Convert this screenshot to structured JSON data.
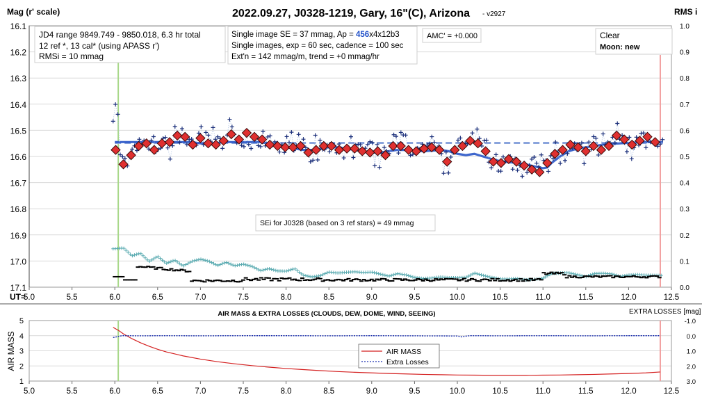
{
  "chart_data": [
    {
      "type": "scatter",
      "title": "2022.09.27, J0328-1219, Gary, 16\"(C), Arizona",
      "version": "- v2927",
      "ylabel_left": "Mag (r' scale)",
      "ylabel_right": "RMS i",
      "xlabel": "UT=",
      "x_ticks": [
        "5.0",
        "5.5",
        "6.0",
        "6.5",
        "7.0",
        "7.5",
        "8.0",
        "8.5",
        "9.0",
        "9.5",
        "10.0",
        "10.5",
        "11.0",
        "11.5",
        "12.0",
        "12.5"
      ],
      "y_ticks_left": [
        "16.1",
        "16.2",
        "16.3",
        "16.4",
        "16.5",
        "16.6",
        "16.7",
        "16.8",
        "16.9",
        "17.0",
        "17.1"
      ],
      "y_ticks_right": [
        "1.0",
        "0.9",
        "0.8",
        "0.7",
        "0.6",
        "0.5",
        "0.4",
        "0.3",
        "0.2",
        "0.1",
        "0.0"
      ],
      "xlim": [
        5.0,
        12.5
      ],
      "ylim": [
        16.1,
        17.1
      ],
      "y2lim": [
        0.0,
        1.0
      ],
      "ingress_ut": 6.04,
      "egress_ut": 12.37,
      "reference_mag": 16.55,
      "info_box_1": [
        "JD4 range 9849.749 - 9850.018, 6.3 hr total",
        "12 ref *, 13 cal*  (using APASS r')",
        "RMSi = 10 mmag"
      ],
      "info_box_2": {
        "line1_prefix": "Single image SE = 37 mmag, Ap = ",
        "line1_ap": "456",
        "line1_suffix": "x4x12b3",
        "line2": "Single images, exp = 60 sec, cadence = 100 sec",
        "line3": "Ext'n = 142 mmag/m, trend = +0 mmag/hr"
      },
      "amc_box": "AMC' = +0.000",
      "sky_box": {
        "line1": "Clear",
        "line2": "Moon: new"
      },
      "sei_box": "SEi for J0328 (based on 3 ref stars) = 49 mmag",
      "series": [
        {
          "label": "binned mag",
          "x": [
            6.01,
            6.1,
            6.19,
            6.28,
            6.37,
            6.46,
            6.55,
            6.64,
            6.73,
            6.82,
            6.91,
            7.0,
            7.09,
            7.18,
            7.27,
            7.36,
            7.45,
            7.54,
            7.63,
            7.72,
            7.81,
            7.9,
            7.99,
            8.08,
            8.17,
            8.26,
            8.35,
            8.44,
            8.53,
            8.62,
            8.71,
            8.8,
            8.89,
            8.98,
            9.07,
            9.16,
            9.25,
            9.34,
            9.43,
            9.52,
            9.61,
            9.7,
            9.79,
            9.88,
            9.97,
            10.06,
            10.15,
            10.24,
            10.33,
            10.42,
            10.51,
            10.6,
            10.69,
            10.78,
            10.87,
            10.96,
            11.05,
            11.14,
            11.23,
            11.32,
            11.41,
            11.5,
            11.59,
            11.68,
            11.77,
            11.86,
            11.95,
            12.04,
            12.13,
            12.22,
            12.31
          ],
          "y": [
            16.575,
            16.63,
            16.595,
            16.56,
            16.55,
            16.575,
            16.55,
            16.545,
            16.52,
            16.525,
            16.555,
            16.53,
            16.55,
            16.555,
            16.54,
            16.515,
            16.535,
            16.51,
            16.525,
            16.535,
            16.555,
            16.56,
            16.565,
            16.565,
            16.56,
            16.585,
            16.575,
            16.56,
            16.56,
            16.575,
            16.57,
            16.57,
            16.58,
            16.585,
            16.58,
            16.595,
            16.56,
            16.56,
            16.575,
            16.58,
            16.57,
            16.565,
            16.575,
            16.62,
            16.575,
            16.56,
            16.54,
            16.55,
            16.58,
            16.62,
            16.625,
            16.61,
            16.62,
            16.635,
            16.65,
            16.66,
            16.625,
            16.59,
            16.575,
            16.555,
            16.565,
            16.58,
            16.56,
            16.575,
            16.56,
            16.52,
            16.535,
            16.555,
            16.54,
            16.525,
            16.545
          ],
          "color": "#e03030"
        },
        {
          "label": "model",
          "x": [
            6.0,
            6.05,
            6.1,
            6.15,
            6.2,
            6.25,
            6.3,
            6.4,
            6.5,
            6.6,
            6.7,
            6.8,
            6.9,
            7.0,
            7.1,
            7.2,
            7.3,
            7.4,
            7.5,
            7.6,
            7.7,
            7.8,
            7.9,
            8.0,
            8.1,
            8.2,
            8.3,
            8.4,
            8.5,
            8.6,
            8.7,
            8.8,
            8.9,
            9.0,
            9.1,
            9.2,
            9.3,
            9.4,
            9.5,
            9.6,
            9.7,
            9.8,
            9.9,
            10.0,
            10.1,
            10.2,
            10.3,
            10.4,
            10.5,
            10.6,
            10.7,
            10.8,
            10.9,
            11.0,
            11.05,
            11.1,
            11.2,
            11.3,
            11.4,
            11.5,
            11.6,
            11.7,
            11.8,
            11.9,
            12.0,
            12.1,
            12.2,
            12.3,
            12.4
          ],
          "y": [
            16.545,
            16.545,
            16.545,
            16.545,
            16.545,
            16.545,
            16.545,
            16.545,
            16.545,
            16.545,
            16.545,
            16.545,
            16.545,
            16.55,
            16.55,
            16.548,
            16.545,
            16.545,
            16.545,
            16.545,
            16.545,
            16.55,
            16.56,
            16.565,
            16.57,
            16.575,
            16.575,
            16.57,
            16.565,
            16.565,
            16.57,
            16.575,
            16.58,
            16.585,
            16.585,
            16.58,
            16.575,
            16.575,
            16.578,
            16.58,
            16.578,
            16.575,
            16.58,
            16.59,
            16.595,
            16.59,
            16.6,
            16.61,
            16.618,
            16.622,
            16.625,
            16.63,
            16.638,
            16.645,
            16.642,
            16.625,
            16.6,
            16.58,
            16.57,
            16.565,
            16.56,
            16.555,
            16.552,
            16.55,
            16.548,
            16.546,
            16.545,
            16.545,
            16.545
          ],
          "color": "#2a56c8"
        },
        {
          "label": "reference level",
          "x": [
            6.0,
            12.4
          ],
          "y": [
            16.548,
            16.548
          ],
          "color": "#8aa4dc"
        },
        {
          "label": "RMS",
          "x": [
            6.0,
            6.1,
            6.2,
            6.3,
            6.4,
            6.5,
            6.6,
            6.7,
            6.8,
            6.9,
            7.0,
            7.1,
            7.2,
            7.3,
            7.4,
            7.5,
            7.6,
            7.7,
            7.8,
            7.9,
            8.0,
            8.1,
            8.2,
            8.3,
            8.4,
            8.5,
            8.6,
            8.7,
            8.8,
            8.9,
            9.0,
            9.1,
            9.2,
            9.3,
            9.4,
            9.5,
            9.6,
            9.7,
            9.8,
            9.9,
            10.0,
            10.1,
            10.2,
            10.3,
            10.4,
            10.5,
            10.6,
            10.7,
            10.8,
            10.9,
            11.0,
            11.1,
            11.2,
            11.3,
            11.4,
            11.5,
            11.6,
            11.7,
            11.8,
            11.9,
            12.0,
            12.1,
            12.2,
            12.3
          ],
          "y": [
            0.147,
            0.15,
            0.12,
            0.13,
            0.098,
            0.118,
            0.091,
            0.103,
            0.081,
            0.099,
            0.107,
            0.099,
            0.083,
            0.095,
            0.082,
            0.088,
            0.08,
            0.063,
            0.071,
            0.062,
            0.061,
            0.071,
            0.046,
            0.039,
            0.044,
            0.058,
            0.054,
            0.057,
            0.059,
            0.056,
            0.058,
            0.05,
            0.042,
            0.052,
            0.047,
            0.037,
            0.033,
            0.035,
            0.039,
            0.036,
            0.036,
            0.037,
            0.054,
            0.045,
            0.037,
            0.032,
            0.032,
            0.033,
            0.028,
            0.03,
            0.034,
            0.052,
            0.054,
            0.055,
            0.048,
            0.04,
            0.052,
            0.053,
            0.051,
            0.041,
            0.046,
            0.048,
            0.046,
            0.045
          ],
          "color": "#58aab0"
        }
      ]
    },
    {
      "type": "line",
      "title": "AIR MASS & EXTRA LOSSES (CLOUDS, DEW, DOME, WIND, SEEING)",
      "ylabel_left": "AIR MASS",
      "ylabel_right": "EXTRA LOSSES [mag]",
      "x_ticks": [
        "5.0",
        "5.5",
        "6.0",
        "6.5",
        "7.0",
        "7.5",
        "8.0",
        "8.5",
        "9.0",
        "9.5",
        "10.0",
        "10.5",
        "11.0",
        "11.5",
        "12.0",
        "12.5"
      ],
      "y_ticks_left": [
        "5",
        "4",
        "3",
        "2",
        "1"
      ],
      "y_ticks_right": [
        "-1.0",
        "0.0",
        "1.0",
        "2.0",
        "3.0"
      ],
      "xlim": [
        5.0,
        12.5
      ],
      "ylim": [
        1,
        5
      ],
      "y2lim": [
        -1.0,
        3.0
      ],
      "legend": [
        "AIR MASS",
        "Extra Losses"
      ],
      "series": [
        {
          "name": "AIR MASS",
          "x": [
            5.98,
            6.05,
            6.1,
            6.2,
            6.3,
            6.4,
            6.5,
            6.6,
            6.8,
            7.0,
            7.2,
            7.4,
            7.6,
            7.8,
            8.0,
            8.2,
            8.4,
            8.6,
            8.8,
            9.0,
            9.2,
            9.4,
            9.6,
            9.8,
            10.0,
            10.2,
            10.4,
            10.6,
            10.8,
            11.0,
            11.2,
            11.4,
            11.6,
            11.8,
            12.0,
            12.2,
            12.37
          ],
          "y": [
            4.55,
            4.32,
            4.12,
            3.8,
            3.53,
            3.3,
            3.1,
            2.93,
            2.66,
            2.45,
            2.28,
            2.14,
            2.02,
            1.92,
            1.83,
            1.76,
            1.69,
            1.63,
            1.58,
            1.54,
            1.5,
            1.47,
            1.44,
            1.42,
            1.4,
            1.39,
            1.38,
            1.38,
            1.38,
            1.39,
            1.4,
            1.42,
            1.44,
            1.47,
            1.5,
            1.54,
            1.6
          ],
          "color": "#d42020"
        },
        {
          "name": "Extra Losses",
          "x": [
            5.98,
            6.02,
            6.06,
            6.1,
            6.3,
            6.6,
            7.0,
            7.5,
            8.0,
            8.5,
            9.0,
            9.5,
            10.0,
            10.05,
            10.1,
            10.15,
            10.5,
            11.0,
            11.5,
            12.0,
            12.37
          ],
          "y": [
            0.12,
            0.08,
            0.02,
            0.0,
            0.01,
            0.0,
            0.01,
            0.0,
            0.0,
            0.01,
            0.0,
            0.01,
            0.02,
            0.08,
            0.03,
            0.0,
            0.01,
            0.0,
            0.01,
            0.0,
            0.0
          ],
          "color": "#1a2fb0"
        }
      ]
    }
  ]
}
